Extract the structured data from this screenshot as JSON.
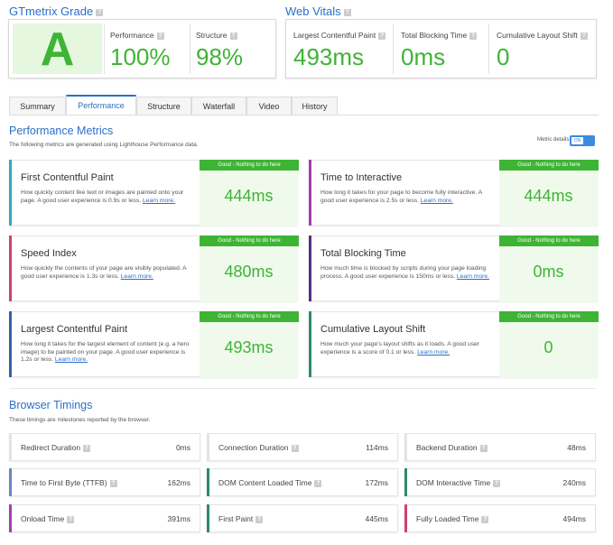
{
  "grade": {
    "title": "GTmetrix Grade",
    "letter": "A",
    "performance_label": "Performance",
    "performance_value": "100%",
    "structure_label": "Structure",
    "structure_value": "98%"
  },
  "web_vitals": {
    "title": "Web Vitals",
    "items": [
      {
        "label": "Largest Contentful Paint",
        "value": "493ms"
      },
      {
        "label": "Total Blocking Time",
        "value": "0ms"
      },
      {
        "label": "Cumulative Layout Shift",
        "value": "0"
      }
    ]
  },
  "tabs": [
    {
      "label": "Summary",
      "active": false
    },
    {
      "label": "Performance",
      "active": true
    },
    {
      "label": "Structure",
      "active": false
    },
    {
      "label": "Waterfall",
      "active": false
    },
    {
      "label": "Video",
      "active": false
    },
    {
      "label": "History",
      "active": false
    }
  ],
  "performance": {
    "title": "Performance Metrics",
    "subtitle": "The following metrics are generated using Lighthouse Performance data.",
    "toggle_label": "Metric details",
    "toggle_state": "ON",
    "status_text": "Good - Nothing to do here",
    "learn_more": "Learn more.",
    "metrics": [
      {
        "title": "First Contentful Paint",
        "desc": "How quickly content like text or images are painted onto your page. A good user experience is 0.9s or less.",
        "value": "444ms",
        "color": "#31a7c5"
      },
      {
        "title": "Time to Interactive",
        "desc": "How long it takes for your page to become fully interactive. A good user experience is 2.5s or less.",
        "value": "444ms",
        "color": "#a63db2"
      },
      {
        "title": "Speed Index",
        "desc": "How quickly the contents of your page are visibly populated. A good user experience is 1.3s or less.",
        "value": "480ms",
        "color": "#d0426b"
      },
      {
        "title": "Total Blocking Time",
        "desc": "How much time is blocked by scripts during your page loading process. A good user experience is 150ms or less.",
        "value": "0ms",
        "color": "#5a2e82"
      },
      {
        "title": "Largest Contentful Paint",
        "desc": "How long it takes for the largest element of content (e.g. a hero image) to be painted on your page. A good user experience is 1.2s or less.",
        "value": "493ms",
        "color": "#3363a9"
      },
      {
        "title": "Cumulative Layout Shift",
        "desc": "How much your page's layout shifts as it loads. A good user experience is a score of 0.1 or less.",
        "value": "0",
        "color": "#2e8a69"
      }
    ]
  },
  "timings": {
    "title": "Browser Timings",
    "subtitle": "These timings are milestones reported by the browser.",
    "items": [
      {
        "label": "Redirect Duration",
        "value": "0ms",
        "color": "#e4e4e4"
      },
      {
        "label": "Connection Duration",
        "value": "114ms",
        "color": "#e4e4e4"
      },
      {
        "label": "Backend Duration",
        "value": "48ms",
        "color": "#e4e4e4"
      },
      {
        "label": "Time to First Byte (TTFB)",
        "value": "162ms",
        "color": "#6b86c6"
      },
      {
        "label": "DOM Content Loaded Time",
        "value": "172ms",
        "color": "#2e8a69"
      },
      {
        "label": "DOM Interactive Time",
        "value": "240ms",
        "color": "#2e8a69"
      },
      {
        "label": "Onload Time",
        "value": "391ms",
        "color": "#a63db2"
      },
      {
        "label": "First Paint",
        "value": "445ms",
        "color": "#2e8a69"
      },
      {
        "label": "Fully Loaded Time",
        "value": "494ms",
        "color": "#d0426b"
      }
    ]
  }
}
